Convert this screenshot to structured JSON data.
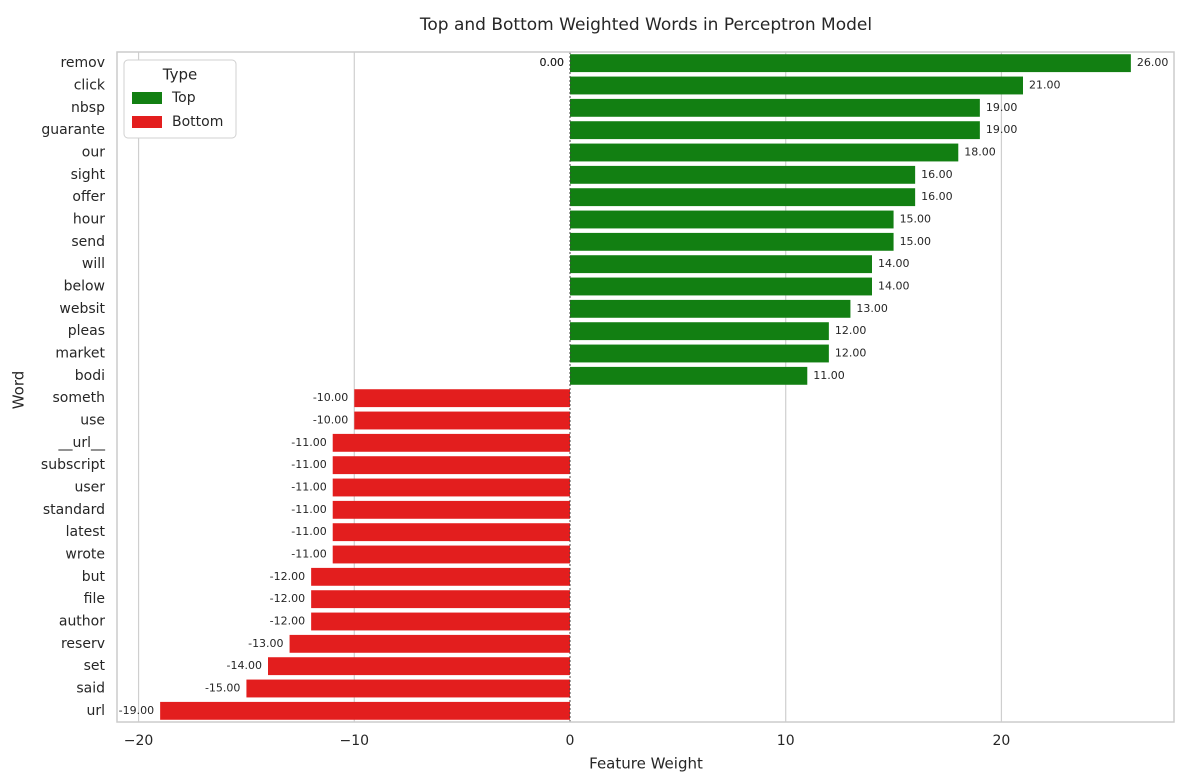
{
  "chart_data": {
    "type": "bar",
    "orientation": "horizontal",
    "title": "Top and Bottom Weighted Words in Perceptron Model",
    "xlabel": "Feature Weight",
    "ylabel": "Word",
    "xlim": [
      -21,
      28
    ],
    "xticks": [
      -20,
      -10,
      0,
      10,
      20
    ],
    "xtick_labels": [
      "−20",
      "−10",
      "0",
      "10",
      "20"
    ],
    "grid": "vertical",
    "legend": {
      "title": "Type",
      "placement": "top-left",
      "entries": [
        {
          "label": "Top",
          "color": "#127f12"
        },
        {
          "label": "Bottom",
          "color": "#e31e1e"
        }
      ]
    },
    "zero_label": "0.00",
    "categories": [
      "remov",
      "click",
      "nbsp",
      "guarante",
      "our",
      "sight",
      "offer",
      "hour",
      "send",
      "will",
      "below",
      "websit",
      "pleas",
      "market",
      "bodi",
      "someth",
      "use",
      "__url__",
      "subscript",
      "user",
      "standard",
      "latest",
      "wrote",
      "but",
      "file",
      "author",
      "reserv",
      "set",
      "said",
      "url"
    ],
    "values": [
      26,
      21,
      19,
      19,
      18,
      16,
      16,
      15,
      15,
      14,
      14,
      13,
      12,
      12,
      11,
      -10,
      -10,
      -11,
      -11,
      -11,
      -11,
      -11,
      -11,
      -12,
      -12,
      -12,
      -13,
      -14,
      -15,
      -19
    ],
    "value_labels": [
      "26.00",
      "21.00",
      "19.00",
      "19.00",
      "18.00",
      "16.00",
      "16.00",
      "15.00",
      "15.00",
      "14.00",
      "14.00",
      "13.00",
      "12.00",
      "12.00",
      "11.00",
      "-10.00",
      "-10.00",
      "-11.00",
      "-11.00",
      "-11.00",
      "-11.00",
      "-11.00",
      "-11.00",
      "-12.00",
      "-12.00",
      "-12.00",
      "-13.00",
      "-14.00",
      "-15.00",
      "-19.00"
    ],
    "types": [
      "Top",
      "Top",
      "Top",
      "Top",
      "Top",
      "Top",
      "Top",
      "Top",
      "Top",
      "Top",
      "Top",
      "Top",
      "Top",
      "Top",
      "Top",
      "Bottom",
      "Bottom",
      "Bottom",
      "Bottom",
      "Bottom",
      "Bottom",
      "Bottom",
      "Bottom",
      "Bottom",
      "Bottom",
      "Bottom",
      "Bottom",
      "Bottom",
      "Bottom",
      "Bottom"
    ]
  }
}
